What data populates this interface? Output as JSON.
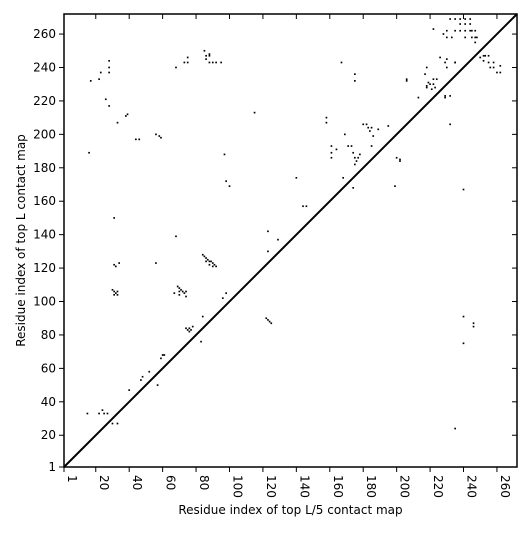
{
  "chart_data": {
    "type": "scatter",
    "xlabel": "Residue index of top L/5 contact map",
    "ylabel": "Residue index of top L contact map",
    "xlim": [
      1,
      272
    ],
    "ylim": [
      1,
      272
    ],
    "xticks": [
      1,
      20,
      40,
      60,
      80,
      100,
      120,
      140,
      160,
      180,
      200,
      220,
      240,
      260
    ],
    "yticks": [
      1,
      20,
      40,
      60,
      80,
      100,
      120,
      140,
      160,
      180,
      200,
      220,
      240,
      260
    ],
    "xtick_labels": [
      "1",
      "20",
      "40",
      "60",
      "80",
      "100",
      "120",
      "140",
      "160",
      "180",
      "200",
      "220",
      "240",
      "260"
    ],
    "ytick_labels": [
      "1",
      "20",
      "40",
      "60",
      "80",
      "100",
      "120",
      "140",
      "160",
      "180",
      "200",
      "220",
      "240",
      "260"
    ],
    "diagonal": true,
    "marker_color": "#000000",
    "series": [
      {
        "points": [
          [
            85,
            250
          ],
          [
            86,
            247
          ],
          [
            88,
            247
          ],
          [
            86,
            245
          ],
          [
            88,
            243
          ],
          [
            90,
            243
          ],
          [
            73,
            243
          ],
          [
            75,
            243
          ],
          [
            68,
            240
          ],
          [
            75,
            246
          ],
          [
            88,
            248
          ],
          [
            92,
            243
          ],
          [
            95,
            243
          ],
          [
            33,
            207
          ],
          [
            38,
            211
          ],
          [
            39,
            212
          ],
          [
            44,
            197
          ],
          [
            46,
            197
          ],
          [
            56,
            200
          ],
          [
            58,
            199
          ],
          [
            59,
            198
          ],
          [
            16,
            189
          ],
          [
            22,
            233
          ],
          [
            17,
            232
          ],
          [
            23,
            237
          ],
          [
            26,
            221
          ],
          [
            28,
            237
          ],
          [
            28,
            240
          ],
          [
            28,
            244
          ],
          [
            28,
            217
          ],
          [
            230,
            262
          ],
          [
            230,
            258
          ],
          [
            233,
            258
          ],
          [
            235,
            262
          ],
          [
            228,
            260
          ],
          [
            232,
            269
          ],
          [
            235,
            269
          ],
          [
            238,
            269
          ],
          [
            238,
            266
          ],
          [
            241,
            269
          ],
          [
            241,
            266
          ],
          [
            244,
            269
          ],
          [
            244,
            266
          ],
          [
            244,
            262
          ],
          [
            245,
            262
          ],
          [
            245,
            258
          ],
          [
            247,
            262
          ],
          [
            247,
            258
          ],
          [
            247,
            255
          ],
          [
            241,
            262
          ],
          [
            241,
            258
          ],
          [
            238,
            262
          ],
          [
            250,
            250
          ],
          [
            252,
            247
          ],
          [
            252,
            244
          ],
          [
            253,
            247
          ],
          [
            255,
            247
          ],
          [
            255,
            243
          ],
          [
            256,
            240
          ],
          [
            258,
            240
          ],
          [
            260,
            237
          ],
          [
            262,
            237
          ],
          [
            258,
            243
          ],
          [
            222,
            233
          ],
          [
            222,
            230
          ],
          [
            224,
            233
          ],
          [
            220,
            230
          ],
          [
            218,
            228
          ],
          [
            217,
            236
          ],
          [
            218,
            240
          ],
          [
            230,
            245
          ],
          [
            226,
            246
          ],
          [
            235,
            243
          ],
          [
            229,
            222
          ],
          [
            229,
            223
          ],
          [
            232,
            223
          ],
          [
            232,
            206
          ],
          [
            206,
            232
          ],
          [
            206,
            233
          ],
          [
            213,
            222
          ],
          [
            222,
            263
          ],
          [
            248,
            258
          ],
          [
            250,
            246
          ],
          [
            262,
            241
          ],
          [
            218,
            229
          ],
          [
            219,
            231
          ],
          [
            221,
            227
          ],
          [
            223,
            228
          ],
          [
            158,
            207
          ],
          [
            158,
            210
          ],
          [
            161,
            193
          ],
          [
            161,
            189
          ],
          [
            161,
            186
          ],
          [
            164,
            191
          ],
          [
            167,
            243
          ],
          [
            168,
            174
          ],
          [
            169,
            200
          ],
          [
            171,
            193
          ],
          [
            173,
            193
          ],
          [
            174,
            189
          ],
          [
            175,
            186
          ],
          [
            175,
            182
          ],
          [
            176,
            184
          ],
          [
            177,
            186
          ],
          [
            178,
            188
          ],
          [
            180,
            206
          ],
          [
            182,
            206
          ],
          [
            183,
            204
          ],
          [
            184,
            202
          ],
          [
            185,
            204
          ],
          [
            185,
            193
          ],
          [
            186,
            199
          ],
          [
            189,
            203
          ],
          [
            195,
            205
          ],
          [
            199,
            169
          ],
          [
            200,
            186
          ],
          [
            202,
            185
          ],
          [
            202,
            184
          ],
          [
            174,
            168
          ],
          [
            175,
            236
          ],
          [
            175,
            232
          ],
          [
            230,
            240
          ],
          [
            229,
            243
          ],
          [
            235,
            243
          ],
          [
            83,
            76
          ],
          [
            84,
            91
          ],
          [
            84,
            128
          ],
          [
            85,
            127
          ],
          [
            86,
            126
          ],
          [
            87,
            125
          ],
          [
            88,
            124
          ],
          [
            89,
            124
          ],
          [
            90,
            123
          ],
          [
            91,
            122
          ],
          [
            92,
            121
          ],
          [
            86,
            124
          ],
          [
            88,
            122
          ],
          [
            90,
            121
          ],
          [
            76,
            84
          ],
          [
            77,
            83
          ],
          [
            76,
            82
          ],
          [
            78,
            85
          ],
          [
            69,
            109
          ],
          [
            70,
            108
          ],
          [
            71,
            107
          ],
          [
            72,
            106
          ],
          [
            73,
            105
          ],
          [
            74,
            106
          ],
          [
            70,
            106
          ],
          [
            68,
            139
          ],
          [
            67,
            105
          ],
          [
            70,
            104
          ],
          [
            74,
            103
          ],
          [
            30,
            107
          ],
          [
            31,
            106
          ],
          [
            32,
            105
          ],
          [
            33,
            104
          ],
          [
            31,
            104
          ],
          [
            33,
            106
          ],
          [
            31,
            122
          ],
          [
            32,
            121
          ],
          [
            34,
            123
          ],
          [
            31,
            150
          ],
          [
            30,
            27
          ],
          [
            33,
            27
          ],
          [
            22,
            33
          ],
          [
            24,
            35
          ],
          [
            25,
            33
          ],
          [
            27,
            33
          ],
          [
            15,
            33
          ],
          [
            40,
            47
          ],
          [
            48,
            55
          ],
          [
            47,
            53
          ],
          [
            52,
            58
          ],
          [
            57,
            50
          ],
          [
            60,
            68
          ],
          [
            61,
            68
          ],
          [
            59,
            66
          ],
          [
            56,
            123
          ],
          [
            75,
            83
          ],
          [
            74,
            84
          ],
          [
            96,
            102
          ],
          [
            98,
            105
          ],
          [
            97,
            188
          ],
          [
            98,
            172
          ],
          [
            100,
            169
          ],
          [
            115,
            213
          ],
          [
            122,
            90
          ],
          [
            123,
            89
          ],
          [
            124,
            88
          ],
          [
            125,
            87
          ],
          [
            123,
            142
          ],
          [
            123,
            130
          ],
          [
            129,
            137
          ],
          [
            140,
            174
          ],
          [
            144,
            157
          ],
          [
            146,
            157
          ],
          [
            240,
            91
          ],
          [
            240,
            75
          ],
          [
            246,
            85
          ],
          [
            246,
            87
          ],
          [
            240,
            167
          ],
          [
            235,
            24
          ]
        ]
      }
    ]
  }
}
